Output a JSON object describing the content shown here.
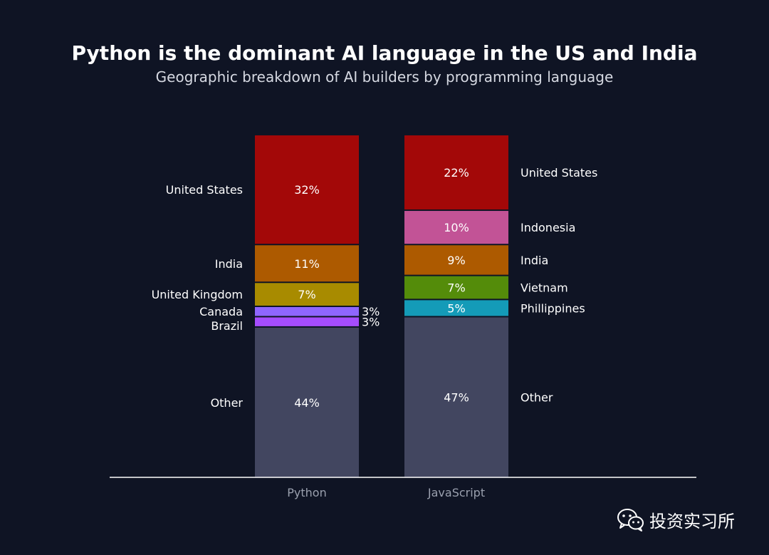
{
  "chart_data": {
    "type": "bar",
    "stacked": true,
    "title": "Python is the dominant AI language in the US and India",
    "subtitle": "Geographic breakdown of AI builders by programming language",
    "categories": [
      "Python",
      "JavaScript"
    ],
    "ylim": [
      0,
      100
    ],
    "xlabel": "",
    "ylabel": "",
    "grid": false,
    "stacks": [
      {
        "category": "Python",
        "label_side": "left",
        "segments": [
          {
            "name": "Other",
            "value": 44,
            "label": "44%",
            "color": "#424660"
          },
          {
            "name": "Brazil",
            "value": 3,
            "label": "3%",
            "color": "#a64dff",
            "label_outside": true
          },
          {
            "name": "Canada",
            "value": 3,
            "label": "3%",
            "color": "#8f66ff",
            "label_outside": true
          },
          {
            "name": "United Kingdom",
            "value": 7,
            "label": "7%",
            "color": "#a88b00"
          },
          {
            "name": "India",
            "value": 11,
            "label": "11%",
            "color": "#ad5a00"
          },
          {
            "name": "United States",
            "value": 32,
            "label": "32%",
            "color": "#a30808"
          }
        ]
      },
      {
        "category": "JavaScript",
        "label_side": "right",
        "segments": [
          {
            "name": "Other",
            "value": 47,
            "label": "47%",
            "color": "#424660"
          },
          {
            "name": "Phillippines",
            "value": 5,
            "label": "5%",
            "color": "#149bb8"
          },
          {
            "name": "Vietnam",
            "value": 7,
            "label": "7%",
            "color": "#548c0a"
          },
          {
            "name": "India",
            "value": 9,
            "label": "9%",
            "color": "#ad5a00"
          },
          {
            "name": "Indonesia",
            "value": 10,
            "label": "10%",
            "color": "#c25396"
          },
          {
            "name": "United States",
            "value": 22,
            "label": "22%",
            "color": "#a30808"
          }
        ]
      }
    ]
  },
  "watermark": {
    "text": "投资实习所",
    "icon": "wechat-icon"
  }
}
